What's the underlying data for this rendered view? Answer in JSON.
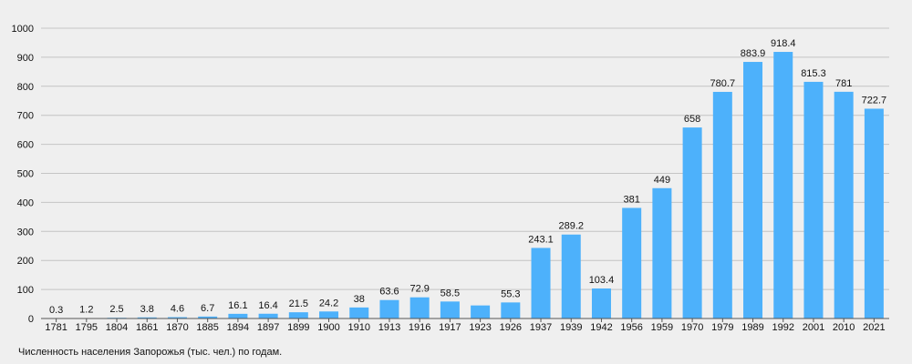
{
  "caption": "Численность населения Запорожья (тыс. чел.) по годам.",
  "colors": {
    "background": "#efefef",
    "bar": "#4db1fb",
    "grid": "#c4c4c4",
    "text": "#111111"
  },
  "chart_data": {
    "type": "bar",
    "title": "",
    "xlabel": "",
    "ylabel": "",
    "ylim": [
      0,
      1000
    ],
    "yticks": [
      0,
      100,
      200,
      300,
      400,
      500,
      600,
      700,
      800,
      900,
      1000
    ],
    "grid": true,
    "legend": "none",
    "categories": [
      "1781",
      "1795",
      "1804",
      "1861",
      "1870",
      "1885",
      "1894",
      "1897",
      "1899",
      "1900",
      "1910",
      "1913",
      "1916",
      "1917",
      "1923",
      "1926",
      "1937",
      "1939",
      "1942",
      "1956",
      "1959",
      "1970",
      "1979",
      "1989",
      "1992",
      "2001",
      "2010",
      "2021"
    ],
    "values": [
      0.3,
      1.2,
      2.5,
      3.8,
      4.6,
      6.7,
      16.1,
      16.4,
      21.5,
      24.2,
      38,
      63.6,
      72.9,
      58.5,
      45,
      55.3,
      243.1,
      289.2,
      103.4,
      381,
      449,
      658,
      780.7,
      883.9,
      918.4,
      815.3,
      781,
      722.7
    ],
    "data_labels": [
      "0.3",
      "1.2",
      "2.5",
      "3.8",
      "4.6",
      "6.7",
      "16.1",
      "16.4",
      "21.5",
      "24.2",
      "38",
      "63.6",
      "72.9",
      "58.5",
      "",
      "55.3",
      "243.1",
      "289.2",
      "103.4",
      "381",
      "449",
      "658",
      "780.7",
      "883.9",
      "918.4",
      "815.3",
      "781",
      "722.7"
    ]
  }
}
